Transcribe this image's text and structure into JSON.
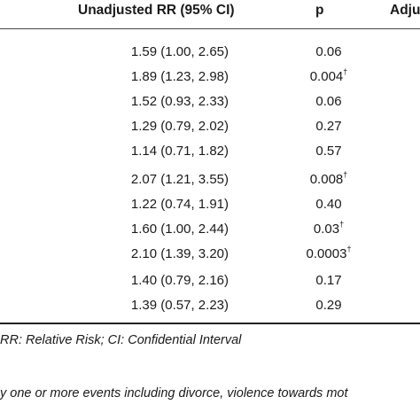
{
  "header": {
    "rr": "Unadjusted RR (95% CI)",
    "p": "p",
    "adjusted_partial": "Adju"
  },
  "rows": [
    {
      "rr": "1.59 (1.00, 2.65)",
      "p": "0.06",
      "mark": ""
    },
    {
      "rr": "1.89 (1.23, 2.98)",
      "p": "0.004",
      "mark": "†"
    },
    {
      "rr": "1.52 (0.93, 2.33)",
      "p": "0.06",
      "mark": ""
    },
    {
      "rr": "1.29 (0.79, 2.02)",
      "p": "0.27",
      "mark": ""
    },
    {
      "rr": "1.14 (0.71, 1.82)",
      "p": "0.57",
      "mark": ""
    },
    {
      "rr": "2.07 (1.21, 3.55)",
      "p": "0.008",
      "mark": "†"
    },
    {
      "rr": "1.22 (0.74, 1.91)",
      "p": "0.40",
      "mark": ""
    },
    {
      "rr": "1.60 (1.00, 2.44)",
      "p": "0.03",
      "mark": "†"
    },
    {
      "rr": "2.10 (1.39, 3.20)",
      "p": "0.0003",
      "mark": "†"
    },
    {
      "rr": "1.40 (0.79, 2.16)",
      "p": "0.17",
      "mark": ""
    },
    {
      "rr": "1.39 (0.57, 2.23)",
      "p": "0.29",
      "mark": ""
    }
  ],
  "footnotes": {
    "line1": "RR: Relative Risk; CI: Confidential Interval",
    "line2": "y one or more events including divorce, violence towards mot"
  }
}
